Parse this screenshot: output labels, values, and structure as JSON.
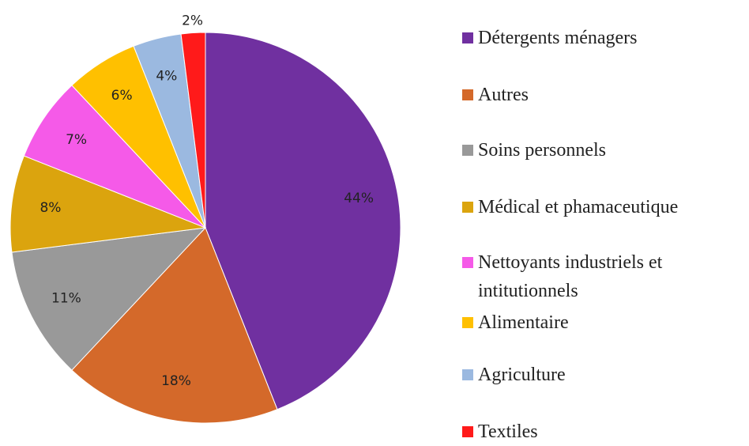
{
  "chart_data": {
    "type": "pie",
    "categories": [
      "Détergents ménagers",
      "Autres",
      "Soins personnels",
      "Médical et phamaceutique",
      "Nettoyants industriels et intitutionnels",
      "Alimentaire",
      "Agriculture",
      "Textiles"
    ],
    "values": [
      44,
      18,
      11,
      8,
      7,
      6,
      4,
      2
    ],
    "value_labels": [
      "44%",
      "18%",
      "11%",
      "8%",
      "7%",
      "6%",
      "4%",
      "2%"
    ],
    "colors": [
      "#7030a0",
      "#d4692a",
      "#999999",
      "#dba40e",
      "#f55ae8",
      "#ffc000",
      "#9bb9e0",
      "#ff1a1a"
    ],
    "legend": "right"
  }
}
